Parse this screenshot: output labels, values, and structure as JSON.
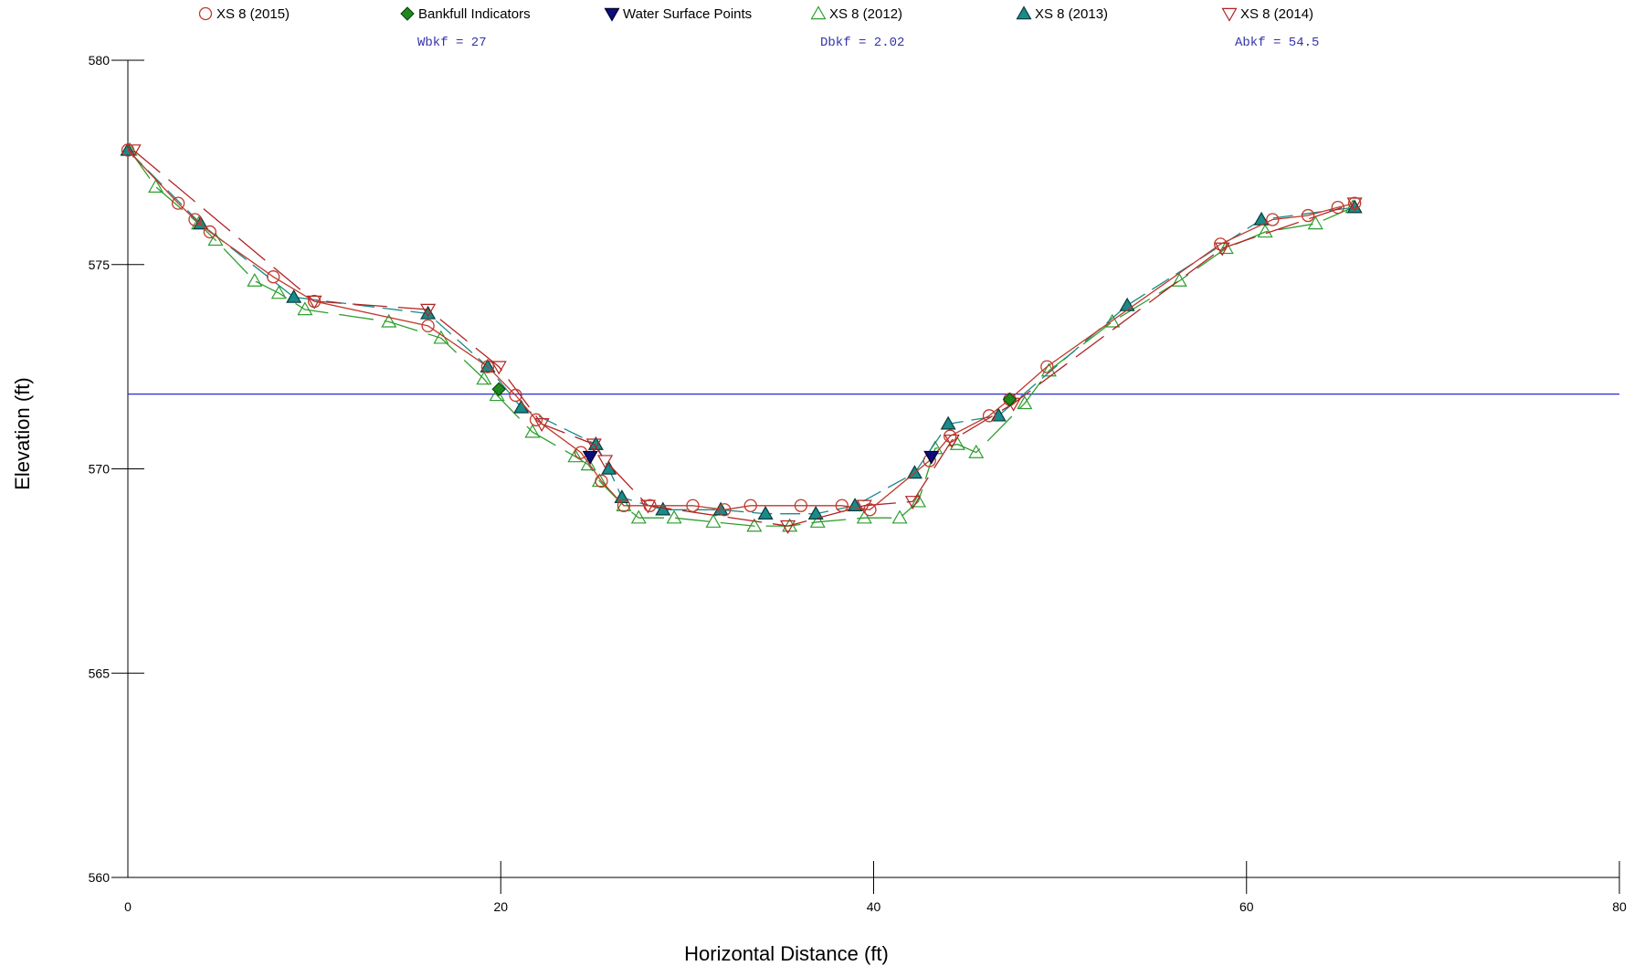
{
  "chart_data": {
    "type": "line",
    "xlabel": "Horizontal Distance (ft)",
    "ylabel": "Elevation (ft)",
    "xlim": [
      0,
      80
    ],
    "ylim": [
      560,
      580
    ],
    "x_ticks": [
      0,
      20,
      40,
      60,
      80
    ],
    "y_ticks": [
      560,
      565,
      570,
      575,
      580
    ],
    "x_tick_labels": [
      "0",
      "20",
      "40",
      "60",
      "80"
    ],
    "y_tick_labels": [
      "560",
      "565",
      "570",
      "575",
      "580"
    ],
    "grid": false,
    "legend_position": "top",
    "annotations": [
      "Wbkf = 27",
      "Dbkf = 2.02",
      "Abkf = 54.5"
    ],
    "water_surface_elevation": 571.83,
    "legend": [
      {
        "label": "XS 8 (2015)",
        "marker": "circle-open",
        "color": "#c0392b"
      },
      {
        "label": "Bankfull Indicators",
        "marker": "diamond-filled",
        "color": "#1e8a1e"
      },
      {
        "label": "Water Surface Points",
        "marker": "triangle-down-filled",
        "color": "#0d0d7a"
      },
      {
        "label": "XS 8 (2012)",
        "marker": "triangle-up-open",
        "color": "#2e9e2e"
      },
      {
        "label": "XS 8 (2013)",
        "marker": "triangle-up-filled",
        "color": "#1a8a8a"
      },
      {
        "label": "XS 8 (2014)",
        "marker": "triangle-down-open",
        "color": "#b22222"
      }
    ],
    "series": [
      {
        "name": "XS 8 (2012)",
        "marker": "triangle-up-open",
        "color": "#2e9e2e",
        "line": "long-dash",
        "x": [
          0.1,
          1.5,
          3.8,
          4.7,
          6.8,
          8.1,
          9.5,
          14.0,
          16.8,
          19.1,
          19.8,
          21.7,
          24.0,
          24.7,
          25.3,
          26.6,
          27.4,
          29.3,
          31.4,
          33.6,
          35.5,
          37.0,
          39.5,
          41.4,
          42.4,
          43.3,
          44.5,
          45.5,
          48.1,
          49.4,
          52.8,
          56.4,
          58.9,
          61.0,
          63.7,
          65.7
        ],
        "y": [
          577.8,
          576.9,
          576.0,
          575.6,
          574.6,
          574.3,
          573.9,
          573.6,
          573.2,
          572.2,
          571.8,
          570.9,
          570.3,
          570.1,
          569.7,
          569.1,
          568.8,
          568.8,
          568.7,
          568.6,
          568.6,
          568.7,
          568.8,
          568.8,
          569.2,
          570.5,
          570.6,
          570.4,
          571.6,
          572.4,
          573.6,
          574.6,
          575.4,
          575.8,
          576.0,
          576.4
        ]
      },
      {
        "name": "XS 8 (2013)",
        "marker": "triangle-up-filled",
        "color": "#1a8a8a",
        "line": "dash",
        "x": [
          0.0,
          3.9,
          8.9,
          16.1,
          19.3,
          21.1,
          25.1,
          25.8,
          26.5,
          28.7,
          31.8,
          34.2,
          36.9,
          39.0,
          42.2,
          44.0,
          46.7,
          53.6,
          60.8,
          65.8
        ],
        "y": [
          577.8,
          576.0,
          574.2,
          573.8,
          572.5,
          571.5,
          570.6,
          570.0,
          569.3,
          569.0,
          569.0,
          568.9,
          568.9,
          569.1,
          569.9,
          571.1,
          571.3,
          574.0,
          576.1,
          576.4
        ]
      },
      {
        "name": "XS 8 (2014)",
        "marker": "triangle-down-open",
        "color": "#b22222",
        "line": "long-dash",
        "x": [
          0.3,
          10.0,
          16.1,
          19.9,
          22.2,
          25.0,
          25.6,
          27.9,
          35.4,
          39.5,
          42.1,
          44.2,
          47.5,
          58.7,
          65.8
        ],
        "y": [
          577.8,
          574.1,
          573.9,
          572.5,
          571.1,
          570.6,
          570.2,
          569.1,
          568.6,
          569.1,
          569.2,
          570.7,
          571.6,
          575.4,
          576.5
        ]
      },
      {
        "name": "XS 8 (2015)",
        "marker": "circle-open",
        "color": "#c0392b",
        "line": "solid",
        "x": [
          0.0,
          2.7,
          3.6,
          4.4,
          7.8,
          10.0,
          16.1,
          19.3,
          20.8,
          21.9,
          24.3,
          25.4,
          26.6,
          28.0,
          30.3,
          32.0,
          33.4,
          36.1,
          38.3,
          39.8,
          43.0,
          44.1,
          46.2,
          47.3,
          49.3,
          58.6,
          61.4,
          63.3,
          64.9,
          65.8
        ],
        "y": [
          577.8,
          576.5,
          576.1,
          575.8,
          574.7,
          574.1,
          573.5,
          572.5,
          571.8,
          571.2,
          570.4,
          569.7,
          569.1,
          569.1,
          569.1,
          569.0,
          569.1,
          569.1,
          569.1,
          569.0,
          570.2,
          570.8,
          571.3,
          571.7,
          572.5,
          575.5,
          576.1,
          576.2,
          576.4,
          576.5
        ]
      },
      {
        "name": "Bankfull Indicators",
        "marker": "diamond-filled",
        "color": "#1e8a1e",
        "line": "none",
        "x": [
          19.9,
          47.3
        ],
        "y": [
          571.95,
          571.7
        ]
      },
      {
        "name": "Water Surface Points",
        "marker": "triangle-down-filled",
        "color": "#0d0d7a",
        "line": "none",
        "x": [
          24.8,
          43.1
        ],
        "y": [
          570.3,
          570.3
        ]
      }
    ]
  }
}
